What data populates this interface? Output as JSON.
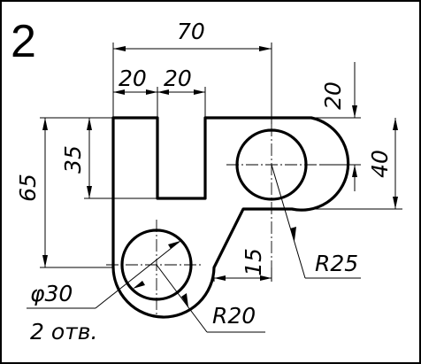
{
  "sheet": {
    "number": "2"
  },
  "dimensions": {
    "overall_width": "70",
    "left_width": "20",
    "slot_width": "20",
    "top_offset": "20",
    "height_total": "65",
    "slot_depth": "35",
    "ear_height": "40",
    "step": "15",
    "radius_top": "R25",
    "radius_bottom": "R20",
    "hole_diameter": "φ30",
    "hole_count": "2 отв."
  }
}
